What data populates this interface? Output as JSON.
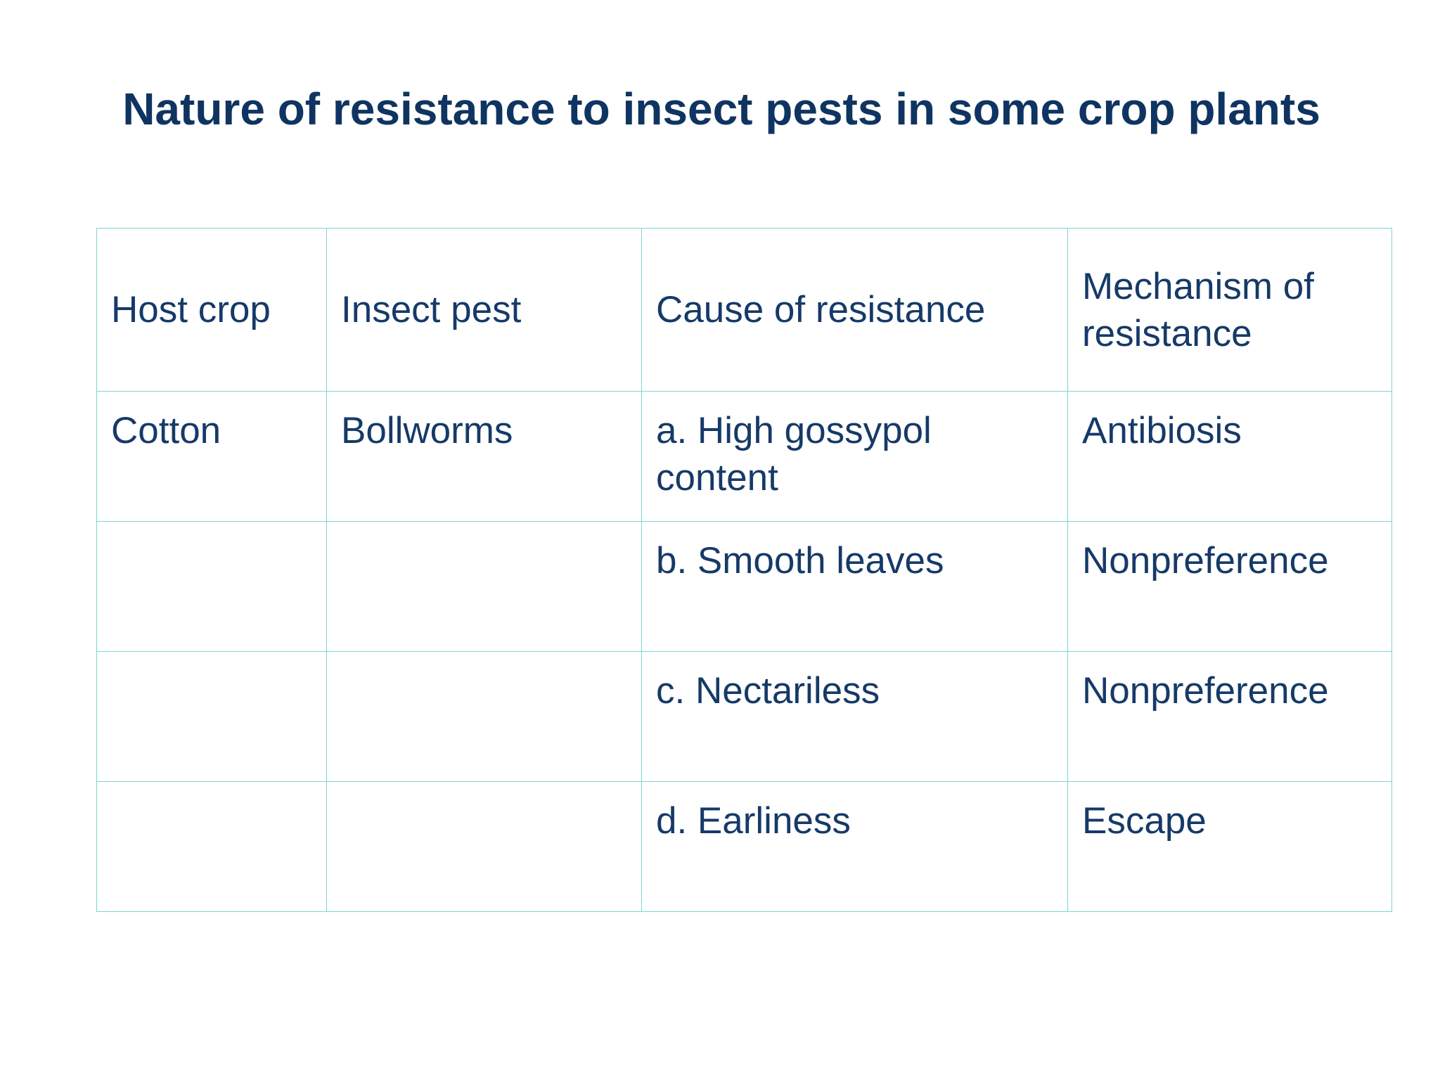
{
  "header": {
    "title": "Nature of resistance to insect pests in some crop plants"
  },
  "table": {
    "columns": [
      "Host crop",
      "Insect pest",
      "Cause of resistance",
      "Mechanism of resistance"
    ],
    "rows": [
      [
        "Cotton",
        "Bollworms",
        "a. High gossypol content",
        "Antibiosis"
      ],
      [
        null,
        null,
        "b. Smooth leaves",
        "Nonpreference"
      ],
      [
        null,
        null,
        "c. Nectariless",
        "Nonpreference"
      ],
      [
        null,
        null,
        "d. Earliness",
        "Escape"
      ]
    ]
  }
}
